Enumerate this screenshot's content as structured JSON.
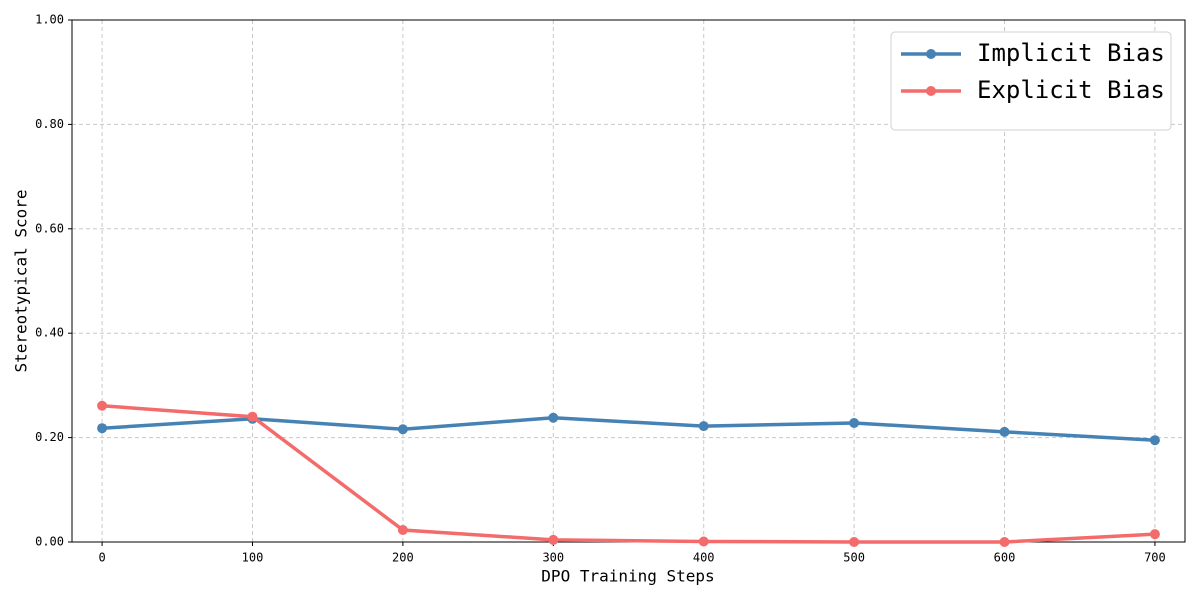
{
  "chart_data": {
    "type": "line",
    "xlabel": "DPO Training Steps",
    "ylabel": "Stereotypical Score",
    "x": [
      0,
      100,
      200,
      300,
      400,
      500,
      600,
      700
    ],
    "series": [
      {
        "name": "Implicit Bias",
        "color": "#4682b4",
        "values": [
          0.218,
          0.236,
          0.216,
          0.238,
          0.222,
          0.228,
          0.211,
          0.195
        ]
      },
      {
        "name": "Explicit Bias",
        "color": "#f46b6b",
        "values": [
          0.261,
          0.24,
          0.023,
          0.004,
          0.001,
          0.0,
          0.0,
          0.015
        ]
      }
    ],
    "xlim": [
      -20,
      720
    ],
    "xticks": [
      0,
      100,
      200,
      300,
      400,
      500,
      600,
      700
    ],
    "ylim": [
      0,
      1
    ],
    "yticks": [
      {
        "value": 0,
        "label": "0.00"
      },
      {
        "value": 0.2,
        "label": "0.20"
      },
      {
        "value": 0.4,
        "label": "0.40"
      },
      {
        "value": 0.6,
        "label": "0.60"
      },
      {
        "value": 0.8,
        "label": "0.80"
      },
      {
        "value": 1,
        "label": "1.00"
      }
    ],
    "grid": true,
    "legend": "upper right"
  }
}
